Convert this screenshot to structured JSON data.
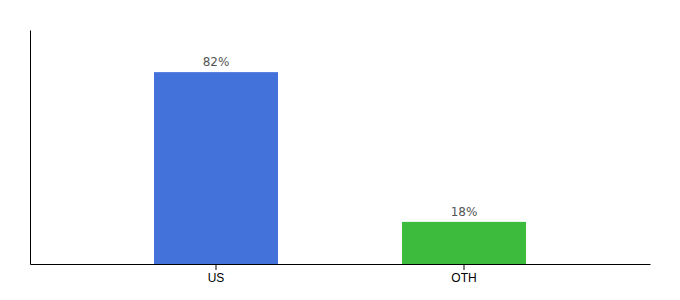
{
  "chart_data": {
    "type": "bar",
    "categories": [
      "US",
      "OTH"
    ],
    "values": [
      82,
      18
    ],
    "value_labels": [
      "82%",
      "18%"
    ],
    "colors": [
      "#4472db",
      "#3dbb3d"
    ],
    "ylim": [
      0,
      100
    ],
    "data_labels": true,
    "tick_labels": "x"
  }
}
